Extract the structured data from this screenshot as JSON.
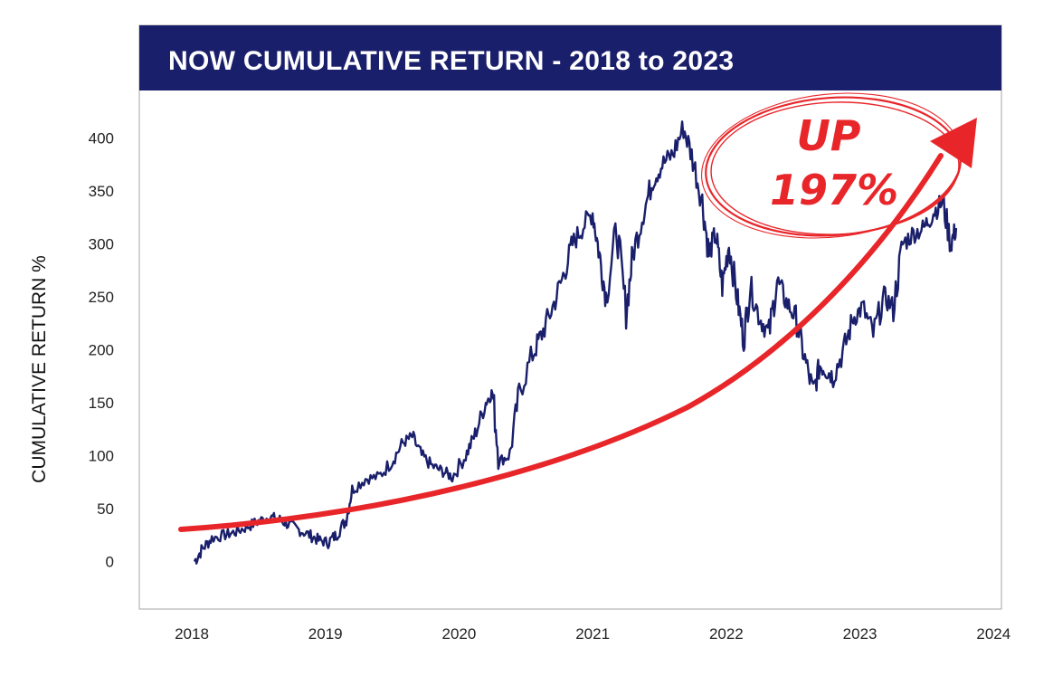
{
  "chart_data": {
    "type": "line",
    "title": "NOW CUMULATIVE RETURN - 2018 to 2023",
    "ylabel": "CUMULATIVE RETURN %",
    "xlabel": "",
    "xlim": [
      2018,
      2024
    ],
    "ylim": [
      -45,
      445
    ],
    "x_ticks": [
      "2018",
      "2019",
      "2020",
      "2021",
      "2022",
      "2023",
      "2024"
    ],
    "y_ticks": [
      "0",
      "50",
      "100",
      "150",
      "200",
      "250",
      "300",
      "350",
      "400"
    ],
    "grid": false,
    "series": [
      {
        "name": "",
        "color": "#1a1f6b",
        "x": [
          2018.02,
          2018.08,
          2018.15,
          2018.25,
          2018.33,
          2018.42,
          2018.5,
          2018.58,
          2018.65,
          2018.72,
          2018.8,
          2018.88,
          2018.95,
          2019.02,
          2019.08,
          2019.15,
          2019.2,
          2019.3,
          2019.4,
          2019.5,
          2019.58,
          2019.65,
          2019.72,
          2019.8,
          2019.88,
          2019.95,
          2020.05,
          2020.12,
          2020.2,
          2020.25,
          2020.3,
          2020.38,
          2020.45,
          2020.55,
          2020.62,
          2020.7,
          2020.78,
          2020.85,
          2020.92,
          2021.0,
          2021.05,
          2021.1,
          2021.18,
          2021.25,
          2021.3,
          2021.38,
          2021.45,
          2021.52,
          2021.6,
          2021.68,
          2021.75,
          2021.82,
          2021.87,
          2021.92,
          2021.97,
          2022.02,
          2022.08,
          2022.13,
          2022.18,
          2022.25,
          2022.32,
          2022.38,
          2022.45,
          2022.52,
          2022.58,
          2022.65,
          2022.7,
          2022.75,
          2022.8,
          2022.88,
          2022.95,
          2023.02,
          2023.1,
          2023.18,
          2023.25,
          2023.32,
          2023.4,
          2023.48,
          2023.55,
          2023.62,
          2023.68,
          2023.72
        ],
        "values": [
          0,
          12,
          22,
          25,
          28,
          33,
          38,
          42,
          40,
          35,
          30,
          25,
          20,
          18,
          25,
          38,
          68,
          78,
          80,
          95,
          112,
          118,
          100,
          90,
          85,
          80,
          100,
          120,
          150,
          160,
          95,
          100,
          160,
          195,
          215,
          240,
          270,
          300,
          315,
          330,
          290,
          250,
          315,
          235,
          290,
          330,
          360,
          375,
          385,
          410,
          380,
          340,
          290,
          310,
          260,
          300,
          250,
          210,
          260,
          230,
          215,
          265,
          245,
          230,
          195,
          160,
          185,
          180,
          175,
          200,
          230,
          240,
          215,
          250,
          240,
          300,
          310,
          315,
          330,
          340,
          300,
          315
        ]
      }
    ],
    "annotations": [
      {
        "type": "trend-arrow",
        "color": "#e8262a",
        "x": [
          2018.0,
          2018.6,
          2019.2,
          2019.8,
          2020.4,
          2021.0,
          2021.6,
          2022.2,
          2022.8,
          2023.4,
          2024.0
        ],
        "values": [
          27,
          34,
          44,
          60,
          80,
          106,
          138,
          180,
          232,
          295,
          370
        ]
      },
      {
        "type": "circled-text",
        "color": "#e8262a",
        "lines": [
          "UP",
          "197%"
        ]
      }
    ]
  }
}
